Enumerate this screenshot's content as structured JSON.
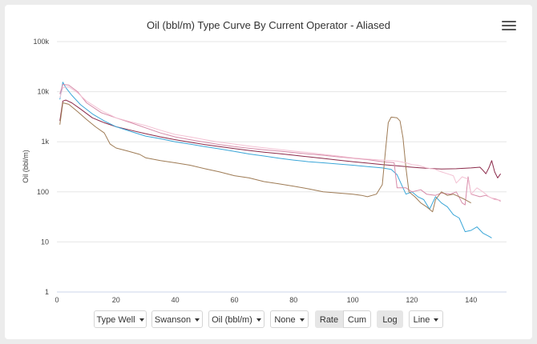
{
  "chart_data": {
    "type": "line",
    "title": "Oil (bbl/m) Type Curve By Current Operator - Aliased",
    "ylabel": "Oil (bbl/m)",
    "xlabel": "",
    "yscale": "log",
    "xlim": [
      0,
      152
    ],
    "ylim": [
      1,
      100000
    ],
    "xticks": [
      0,
      20,
      40,
      60,
      80,
      100,
      120,
      140
    ],
    "yticks": [
      {
        "value": 1,
        "label": "1"
      },
      {
        "value": 10,
        "label": "10"
      },
      {
        "value": 100,
        "label": "100"
      },
      {
        "value": 1000,
        "label": "1k"
      },
      {
        "value": 10000,
        "label": "10k"
      },
      {
        "value": 100000,
        "label": "100k"
      }
    ],
    "grid": "horizontal",
    "legend": "none",
    "series": [
      {
        "color": "#8b2a4a",
        "points": [
          [
            1,
            2600
          ],
          [
            2,
            6500
          ],
          [
            3,
            6800
          ],
          [
            5,
            6000
          ],
          [
            8,
            4500
          ],
          [
            12,
            3000
          ],
          [
            16,
            2400
          ],
          [
            20,
            2000
          ],
          [
            25,
            1700
          ],
          [
            30,
            1450
          ],
          [
            35,
            1250
          ],
          [
            40,
            1100
          ],
          [
            45,
            980
          ],
          [
            50,
            880
          ],
          [
            55,
            800
          ],
          [
            60,
            730
          ],
          [
            65,
            670
          ],
          [
            70,
            620
          ],
          [
            75,
            580
          ],
          [
            80,
            540
          ],
          [
            85,
            500
          ],
          [
            90,
            465
          ],
          [
            95,
            430
          ],
          [
            100,
            400
          ],
          [
            105,
            375
          ],
          [
            110,
            350
          ],
          [
            115,
            330
          ],
          [
            120,
            310
          ],
          [
            125,
            295
          ],
          [
            130,
            285
          ],
          [
            135,
            290
          ],
          [
            140,
            300
          ],
          [
            143,
            310
          ],
          [
            144,
            270
          ],
          [
            145,
            230
          ],
          [
            146,
            300
          ],
          [
            147,
            420
          ],
          [
            148,
            250
          ],
          [
            149,
            190
          ],
          [
            150,
            230
          ]
        ]
      },
      {
        "color": "#3aa6d8",
        "points": [
          [
            1,
            7000
          ],
          [
            2,
            15500
          ],
          [
            3,
            12000
          ],
          [
            5,
            8500
          ],
          [
            8,
            5500
          ],
          [
            12,
            3600
          ],
          [
            16,
            2600
          ],
          [
            20,
            2000
          ],
          [
            25,
            1600
          ],
          [
            30,
            1300
          ],
          [
            35,
            1150
          ],
          [
            40,
            1000
          ],
          [
            45,
            900
          ],
          [
            50,
            800
          ],
          [
            55,
            720
          ],
          [
            60,
            640
          ],
          [
            65,
            570
          ],
          [
            70,
            520
          ],
          [
            75,
            470
          ],
          [
            80,
            430
          ],
          [
            85,
            400
          ],
          [
            90,
            380
          ],
          [
            95,
            360
          ],
          [
            100,
            340
          ],
          [
            105,
            320
          ],
          [
            110,
            300
          ],
          [
            113,
            280
          ],
          [
            115,
            220
          ],
          [
            117,
            120
          ],
          [
            118,
            90
          ],
          [
            120,
            100
          ],
          [
            122,
            80
          ],
          [
            124,
            70
          ],
          [
            126,
            45
          ],
          [
            128,
            80
          ],
          [
            130,
            60
          ],
          [
            132,
            50
          ],
          [
            134,
            35
          ],
          [
            136,
            30
          ],
          [
            138,
            16
          ],
          [
            140,
            17
          ],
          [
            142,
            20
          ],
          [
            144,
            15
          ],
          [
            146,
            13
          ],
          [
            147,
            12
          ]
        ]
      },
      {
        "color": "#d68aa8",
        "points": [
          [
            1,
            9000
          ],
          [
            2,
            14000
          ],
          [
            4,
            13500
          ],
          [
            7,
            10000
          ],
          [
            10,
            6000
          ],
          [
            15,
            3800
          ],
          [
            20,
            3000
          ],
          [
            25,
            2400
          ],
          [
            30,
            1900
          ],
          [
            35,
            1500
          ],
          [
            40,
            1250
          ],
          [
            45,
            1100
          ],
          [
            50,
            980
          ],
          [
            55,
            880
          ],
          [
            60,
            800
          ],
          [
            65,
            740
          ],
          [
            70,
            690
          ],
          [
            75,
            650
          ],
          [
            80,
            610
          ],
          [
            85,
            570
          ],
          [
            90,
            540
          ],
          [
            95,
            500
          ],
          [
            100,
            470
          ],
          [
            105,
            440
          ],
          [
            110,
            400
          ],
          [
            114,
            380
          ],
          [
            115,
            120
          ],
          [
            118,
            120
          ],
          [
            120,
            100
          ],
          [
            123,
            110
          ],
          [
            125,
            90
          ],
          [
            128,
            85
          ],
          [
            130,
            95
          ],
          [
            133,
            90
          ],
          [
            135,
            100
          ],
          [
            137,
            60
          ],
          [
            138,
            55
          ],
          [
            139,
            200
          ],
          [
            140,
            90
          ],
          [
            143,
            80
          ],
          [
            145,
            85
          ],
          [
            147,
            75
          ],
          [
            149,
            70
          ],
          [
            150,
            65
          ]
        ]
      },
      {
        "color": "#9e7b55",
        "points": [
          [
            1,
            2200
          ],
          [
            2,
            6000
          ],
          [
            4,
            5600
          ],
          [
            7,
            4000
          ],
          [
            10,
            2800
          ],
          [
            13,
            2000
          ],
          [
            16,
            1500
          ],
          [
            18,
            900
          ],
          [
            20,
            750
          ],
          [
            24,
            650
          ],
          [
            28,
            560
          ],
          [
            30,
            480
          ],
          [
            35,
            420
          ],
          [
            40,
            380
          ],
          [
            45,
            340
          ],
          [
            50,
            290
          ],
          [
            55,
            250
          ],
          [
            60,
            210
          ],
          [
            65,
            190
          ],
          [
            70,
            160
          ],
          [
            75,
            145
          ],
          [
            80,
            130
          ],
          [
            85,
            115
          ],
          [
            90,
            100
          ],
          [
            95,
            95
          ],
          [
            100,
            90
          ],
          [
            103,
            85
          ],
          [
            105,
            80
          ],
          [
            108,
            90
          ],
          [
            110,
            140
          ],
          [
            111,
            600
          ],
          [
            112,
            2400
          ],
          [
            113,
            3100
          ],
          [
            115,
            3000
          ],
          [
            116,
            2600
          ],
          [
            117,
            1200
          ],
          [
            118,
            300
          ],
          [
            119,
            100
          ],
          [
            121,
            80
          ],
          [
            123,
            60
          ],
          [
            125,
            50
          ],
          [
            127,
            40
          ],
          [
            128,
            70
          ],
          [
            130,
            100
          ],
          [
            132,
            85
          ],
          [
            134,
            90
          ],
          [
            136,
            80
          ],
          [
            138,
            70
          ],
          [
            140,
            60
          ]
        ]
      },
      {
        "color": "#f3c1d3",
        "points": [
          [
            1,
            7500
          ],
          [
            2,
            12000
          ],
          [
            4,
            12500
          ],
          [
            7,
            9500
          ],
          [
            10,
            6500
          ],
          [
            15,
            4200
          ],
          [
            20,
            3000
          ],
          [
            25,
            2500
          ],
          [
            30,
            2100
          ],
          [
            35,
            1700
          ],
          [
            40,
            1400
          ],
          [
            45,
            1250
          ],
          [
            50,
            1100
          ],
          [
            55,
            980
          ],
          [
            60,
            900
          ],
          [
            65,
            820
          ],
          [
            70,
            760
          ],
          [
            75,
            700
          ],
          [
            80,
            650
          ],
          [
            85,
            610
          ],
          [
            90,
            560
          ],
          [
            95,
            520
          ],
          [
            100,
            480
          ],
          [
            105,
            450
          ],
          [
            110,
            430
          ],
          [
            115,
            410
          ],
          [
            118,
            380
          ],
          [
            120,
            350
          ],
          [
            122,
            340
          ],
          [
            125,
            300
          ],
          [
            128,
            280
          ],
          [
            130,
            250
          ],
          [
            132,
            230
          ],
          [
            134,
            210
          ],
          [
            135,
            150
          ],
          [
            137,
            200
          ],
          [
            139,
            180
          ],
          [
            140,
            90
          ],
          [
            142,
            120
          ],
          [
            144,
            100
          ],
          [
            146,
            80
          ],
          [
            148,
            70
          ],
          [
            150,
            68
          ]
        ]
      }
    ]
  },
  "controls": {
    "type_well": "Type Well",
    "operator": "Swanson",
    "metric": "Oil (bbl/m)",
    "grouping": "None",
    "rate": "Rate",
    "cum": "Cum",
    "log": "Log",
    "chart_type": "Line"
  }
}
